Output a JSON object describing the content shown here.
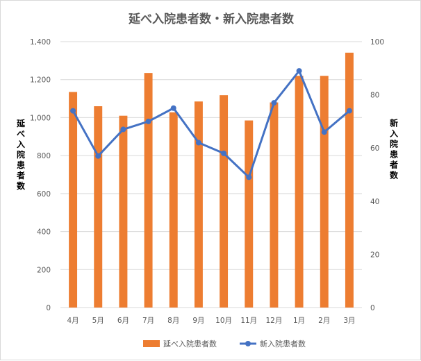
{
  "chart_data": {
    "type": "bar",
    "title": "延べ入院患者数・新入院患者数",
    "categories": [
      "4月",
      "5月",
      "6月",
      "7月",
      "8月",
      "9月",
      "10月",
      "11月",
      "12月",
      "1月",
      "2月",
      "3月"
    ],
    "series": [
      {
        "name": "延べ入院患者数",
        "type": "bar",
        "axis": "left",
        "color": "#ED7D31",
        "values": [
          1135,
          1060,
          1010,
          1235,
          1028,
          1085,
          1118,
          985,
          1080,
          1220,
          1220,
          1342
        ]
      },
      {
        "name": "新入院患者数",
        "type": "line",
        "axis": "right",
        "color": "#4472C4",
        "values": [
          74,
          57,
          67,
          70,
          75,
          62,
          58,
          49,
          77,
          89,
          66,
          74
        ]
      }
    ],
    "y_left": {
      "label": "延べ入院患者数",
      "ylim": [
        0,
        1400
      ],
      "ticks": [
        "0",
        "200",
        "400",
        "600",
        "800",
        "1,000",
        "1,200",
        "1,400"
      ]
    },
    "y_right": {
      "label": "新入院患者数",
      "ylim": [
        0,
        100
      ],
      "ticks": [
        "0",
        "20",
        "40",
        "60",
        "80",
        "100"
      ]
    },
    "grid": true,
    "legend": "bottom"
  }
}
